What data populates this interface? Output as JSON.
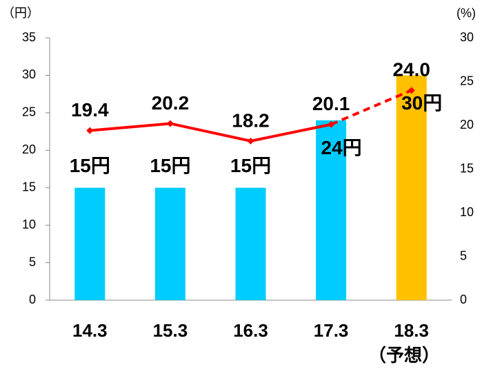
{
  "chart_data": {
    "type": "bar_line",
    "y_unit": "（円）",
    "y2_unit": "(%)",
    "categories": [
      "14.3",
      "15.3",
      "16.3",
      "17.3",
      "18.3"
    ],
    "annotation": "（予想）",
    "series": [
      {
        "type": "bar",
        "colors": [
          "#00ccff",
          "#00ccff",
          "#00ccff",
          "#00ccff",
          "#ffc000"
        ],
        "values": [
          15,
          15,
          15,
          24,
          30
        ],
        "value_labels": [
          "15円",
          "15円",
          "15円",
          "24円",
          "30円"
        ]
      },
      {
        "type": "line",
        "axis": "y2",
        "color": "#ff0000",
        "dash_from": 3,
        "values": [
          19.4,
          20.2,
          18.2,
          20.1,
          24.0
        ],
        "value_labels": [
          "19.4",
          "20.2",
          "18.2",
          "20.1",
          "24.0"
        ]
      }
    ],
    "ylim": [
      0,
      35
    ],
    "yticks": [
      0,
      5,
      10,
      15,
      20,
      25,
      30,
      35
    ],
    "y2lim": [
      0,
      30
    ],
    "y2ticks": [
      0,
      5,
      10,
      15,
      20,
      25,
      30
    ]
  }
}
